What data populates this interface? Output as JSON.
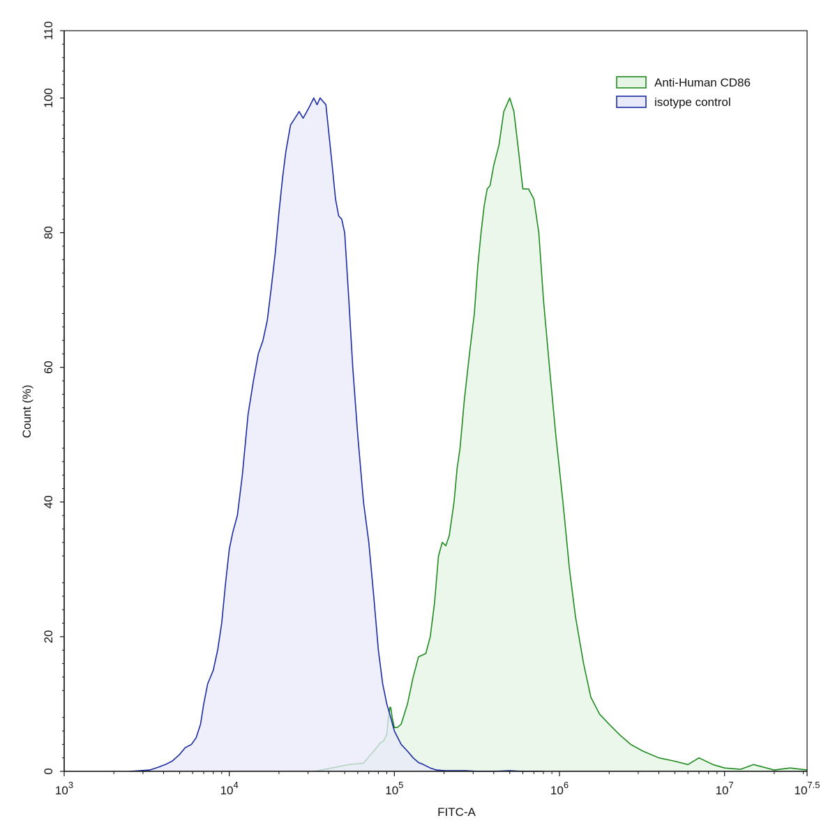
{
  "chart_data": {
    "type": "area",
    "title": "",
    "xlabel": "FITC-A",
    "ylabel": "Count  (%)",
    "x_scale": "log10",
    "xlim": [
      1000,
      31622776.6
    ],
    "ylim": [
      0,
      110
    ],
    "x_ticks": [
      {
        "value": 1000,
        "base": "10",
        "exp": "3"
      },
      {
        "value": 10000,
        "base": "10",
        "exp": "4"
      },
      {
        "value": 100000,
        "base": "10",
        "exp": "5"
      },
      {
        "value": 1000000,
        "base": "10",
        "exp": "6"
      },
      {
        "value": 10000000,
        "base": "10",
        "exp": "7"
      },
      {
        "value": 31622776.6,
        "base": "10",
        "exp": "7.5"
      }
    ],
    "y_ticks": [
      "0",
      "20",
      "40",
      "60",
      "80",
      "100",
      "110"
    ],
    "legend_position": "top-right",
    "series": [
      {
        "name": "Anti-Human CD86",
        "stroke": "#1e8a1e",
        "fill": "#e6f4e6",
        "x": [
          33000,
          53000,
          65000,
          72000,
          78000,
          82000,
          86000,
          90000,
          92000,
          94000,
          95000,
          97000,
          100000,
          104000,
          110000,
          120000,
          130000,
          140000,
          155000,
          165000,
          175000,
          185000,
          195000,
          205000,
          215000,
          230000,
          240000,
          250000,
          265000,
          285000,
          305000,
          320000,
          335000,
          350000,
          365000,
          380000,
          400000,
          430000,
          460000,
          500000,
          530000,
          560000,
          600000,
          650000,
          700000,
          750000,
          800000,
          870000,
          950000,
          1050000,
          1150000,
          1250000,
          1400000,
          1550000,
          1750000,
          2000000,
          2300000,
          2700000,
          3200000,
          4000000,
          5000000,
          6000000,
          7000000,
          8500000,
          10000000,
          12500000,
          15000000,
          20000000,
          25000000,
          31622776
        ],
        "y": [
          0,
          1,
          1.2,
          2.5,
          3.5,
          4.2,
          4.5,
          5.5,
          8.0,
          9.5,
          9.5,
          8.0,
          6.5,
          6.5,
          7.0,
          10.0,
          14.0,
          17.0,
          17.5,
          20.0,
          25.0,
          32.0,
          34.0,
          33.5,
          35.0,
          40.0,
          45.0,
          48.0,
          55.0,
          62.0,
          68.0,
          75.0,
          80.0,
          84.0,
          86.5,
          87.0,
          90.0,
          93.0,
          98.0,
          100.0,
          98.0,
          93.0,
          86.5,
          86.5,
          85.0,
          80.0,
          70.0,
          60.0,
          50.0,
          40.0,
          30.0,
          23.0,
          16.0,
          11.0,
          8.5,
          7.0,
          5.5,
          4.0,
          3.0,
          2.0,
          1.5,
          1.0,
          2.0,
          1.0,
          0.5,
          0.3,
          1.0,
          0.2,
          0.5,
          0.2
        ]
      },
      {
        "name": "isotype control",
        "stroke": "#1a2aa0",
        "fill": "#e8eafa",
        "x": [
          2500,
          3300,
          3700,
          4100,
          4500,
          5000,
          5400,
          5900,
          6300,
          6700,
          7000,
          7400,
          8000,
          8500,
          9000,
          9500,
          10000,
          10500,
          11200,
          12000,
          13000,
          14000,
          15000,
          16000,
          17000,
          18000,
          19000,
          20000,
          21000,
          22000,
          23500,
          25000,
          26500,
          28000,
          29500,
          31000,
          32500,
          34000,
          35500,
          37000,
          38500,
          40000,
          42000,
          44000,
          46000,
          48000,
          50000,
          53000,
          56000,
          60000,
          65000,
          70000,
          75000,
          80000,
          85000,
          90000,
          95000,
          100000,
          110000,
          120000,
          130000,
          140000,
          150000,
          165000,
          180000,
          200000,
          230000,
          270000,
          320000,
          400000,
          500000,
          600000,
          800000
        ],
        "y": [
          0,
          0.2,
          0.6,
          1.0,
          1.5,
          2.5,
          3.5,
          4.0,
          5.0,
          7.0,
          10.0,
          13.0,
          15.0,
          18.0,
          22.0,
          28.0,
          33.0,
          35.5,
          38.0,
          44.0,
          53.0,
          58.0,
          62.0,
          64.0,
          67.0,
          72.0,
          77.0,
          83.0,
          88.0,
          92.0,
          96.0,
          97.0,
          98.0,
          97.0,
          98.0,
          99.0,
          100.0,
          99.0,
          100.0,
          99.5,
          99.0,
          95.0,
          90.0,
          85.0,
          82.5,
          82.0,
          80.0,
          70.0,
          60.0,
          50.0,
          40.0,
          34.0,
          26.0,
          18.0,
          13.0,
          10.0,
          8.0,
          6.0,
          4.0,
          3.0,
          2.0,
          1.3,
          1.0,
          0.5,
          0.2,
          0.1,
          0.1,
          0.1,
          0,
          0,
          0.1,
          0,
          0
        ]
      }
    ]
  }
}
